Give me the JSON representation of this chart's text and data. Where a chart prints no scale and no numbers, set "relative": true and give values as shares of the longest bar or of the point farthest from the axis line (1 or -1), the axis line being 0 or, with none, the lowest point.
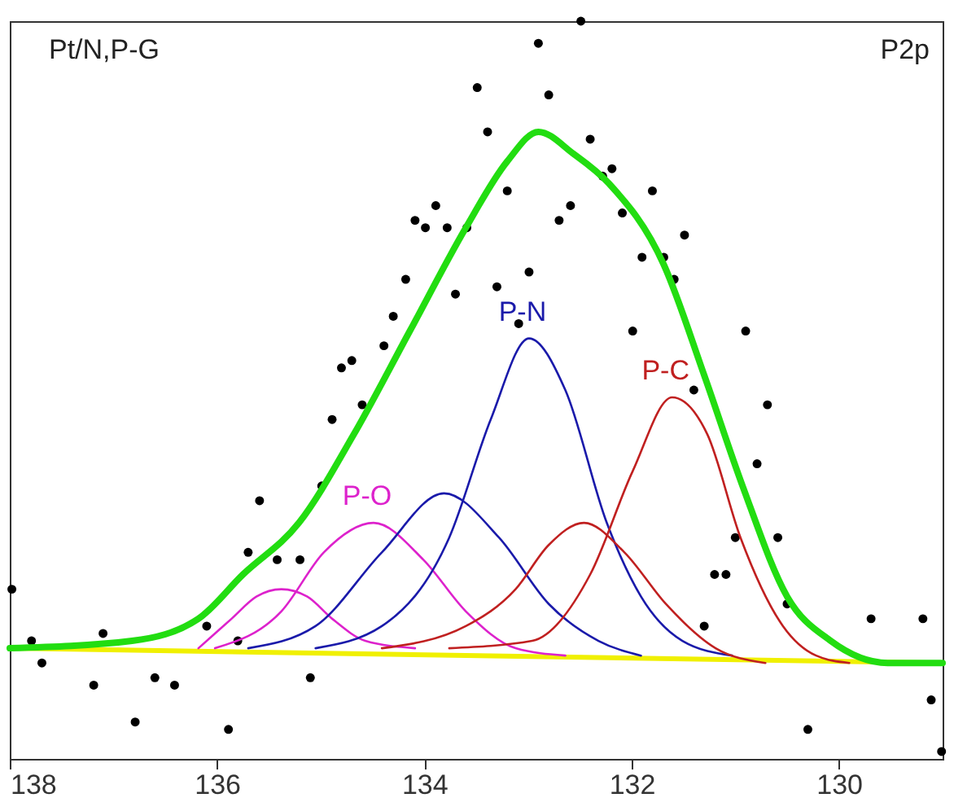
{
  "chart_data": {
    "type": "line",
    "relative": true,
    "annotations": [
      "Pt/N,P-G",
      "P2p"
    ],
    "xlim": [
      138,
      129
    ],
    "xticks": [
      138,
      136,
      134,
      132,
      130
    ],
    "series": [
      {
        "type": "scatter",
        "marker": "circle",
        "color": "#000000",
        "x": [
          137.98,
          137.79,
          137.69,
          137.19,
          137.1,
          136.79,
          136.6,
          136.41,
          136.1,
          135.89,
          135.8,
          135.7,
          135.59,
          135.42,
          135.2,
          135.1,
          134.99,
          134.89,
          134.8,
          134.7,
          134.6,
          134.39,
          134.3,
          134.18,
          134.09,
          133.99,
          133.89,
          133.78,
          133.7,
          133.59,
          133.49,
          133.39,
          133.3,
          133.2,
          133.09,
          132.99,
          132.9,
          132.8,
          132.7,
          132.59,
          132.49,
          132.4,
          132.28,
          132.19,
          132.09,
          131.99,
          131.9,
          131.8,
          131.69,
          131.59,
          131.49,
          131.4,
          131.3,
          131.2,
          131.09,
          131.0,
          130.9,
          130.79,
          130.69,
          130.59,
          130.5,
          130.3,
          129.69,
          129.19,
          129.11,
          129.01
        ],
        "values": [
          0.23,
          0.16,
          0.13,
          0.1,
          0.17,
          0.05,
          0.11,
          0.1,
          0.18,
          0.04,
          0.16,
          0.28,
          0.35,
          0.27,
          0.27,
          0.11,
          0.37,
          0.46,
          0.53,
          0.54,
          0.48,
          0.56,
          0.6,
          0.65,
          0.73,
          0.72,
          0.75,
          0.72,
          0.63,
          0.72,
          0.91,
          0.85,
          0.64,
          0.77,
          0.59,
          0.66,
          0.97,
          0.9,
          0.73,
          0.75,
          1.0,
          0.84,
          0.79,
          0.8,
          0.74,
          0.58,
          0.68,
          0.77,
          0.68,
          0.65,
          0.71,
          0.5,
          0.18,
          0.25,
          0.25,
          0.3,
          0.58,
          0.4,
          0.48,
          0.3,
          0.21,
          0.04,
          0.19,
          0.19,
          0.08,
          0.01
        ]
      },
      {
        "color": "#f0f000",
        "x": [
          138,
          129
        ],
        "values": [
          0.15,
          0.13
        ]
      },
      {
        "color": "#dd22cc",
        "x": [
          136.18,
          135.86,
          135.62,
          135.38,
          135.13,
          134.89,
          134.57,
          134.09
        ],
        "values": [
          0.15,
          0.19,
          0.22,
          0.23,
          0.22,
          0.19,
          0.16,
          0.15
        ]
      },
      {
        "name": "P-O",
        "color": "#dd22cc",
        "x": [
          136.02,
          135.38,
          134.97,
          134.49,
          134.01,
          133.6,
          133.12,
          132.64
        ],
        "values": [
          0.15,
          0.2,
          0.28,
          0.32,
          0.27,
          0.2,
          0.15,
          0.14
        ]
      },
      {
        "color": "#1a1aaa",
        "x": [
          135.7,
          135.05,
          134.41,
          133.81,
          133.28,
          132.8,
          132.32,
          131.91
        ],
        "values": [
          0.15,
          0.18,
          0.28,
          0.36,
          0.3,
          0.21,
          0.16,
          0.14
        ]
      },
      {
        "name": "P-N",
        "color": "#1a1aaa",
        "x": [
          135.05,
          134.41,
          133.76,
          133.36,
          132.99,
          132.64,
          132.24,
          131.91,
          131.51,
          131.03
        ],
        "values": [
          0.15,
          0.18,
          0.3,
          0.46,
          0.57,
          0.5,
          0.32,
          0.22,
          0.16,
          0.14
        ]
      },
      {
        "color": "#c02020",
        "x": [
          134.41,
          133.6,
          133.12,
          132.8,
          132.46,
          132.07,
          131.67,
          131.19,
          130.71
        ],
        "values": [
          0.15,
          0.18,
          0.23,
          0.29,
          0.32,
          0.28,
          0.21,
          0.15,
          0.13
        ]
      },
      {
        "name": "P-C",
        "color": "#c02020",
        "x": [
          133.76,
          132.96,
          132.4,
          131.99,
          131.61,
          131.27,
          130.95,
          130.54,
          130.22,
          129.9
        ],
        "values": [
          0.15,
          0.16,
          0.25,
          0.39,
          0.49,
          0.44,
          0.3,
          0.18,
          0.14,
          0.13
        ]
      },
      {
        "color": "#22dd11",
        "x": [
          138.0,
          136.82,
          136.18,
          135.75,
          135.21,
          134.68,
          134.14,
          133.6,
          133.2,
          132.9,
          132.56,
          132.22,
          131.69,
          131.3,
          130.93,
          130.5,
          130.08,
          129.53,
          129.0
        ],
        "values": [
          0.15,
          0.16,
          0.19,
          0.25,
          0.32,
          0.44,
          0.58,
          0.72,
          0.81,
          0.85,
          0.82,
          0.78,
          0.67,
          0.52,
          0.37,
          0.22,
          0.16,
          0.13,
          0.13
        ]
      }
    ]
  }
}
